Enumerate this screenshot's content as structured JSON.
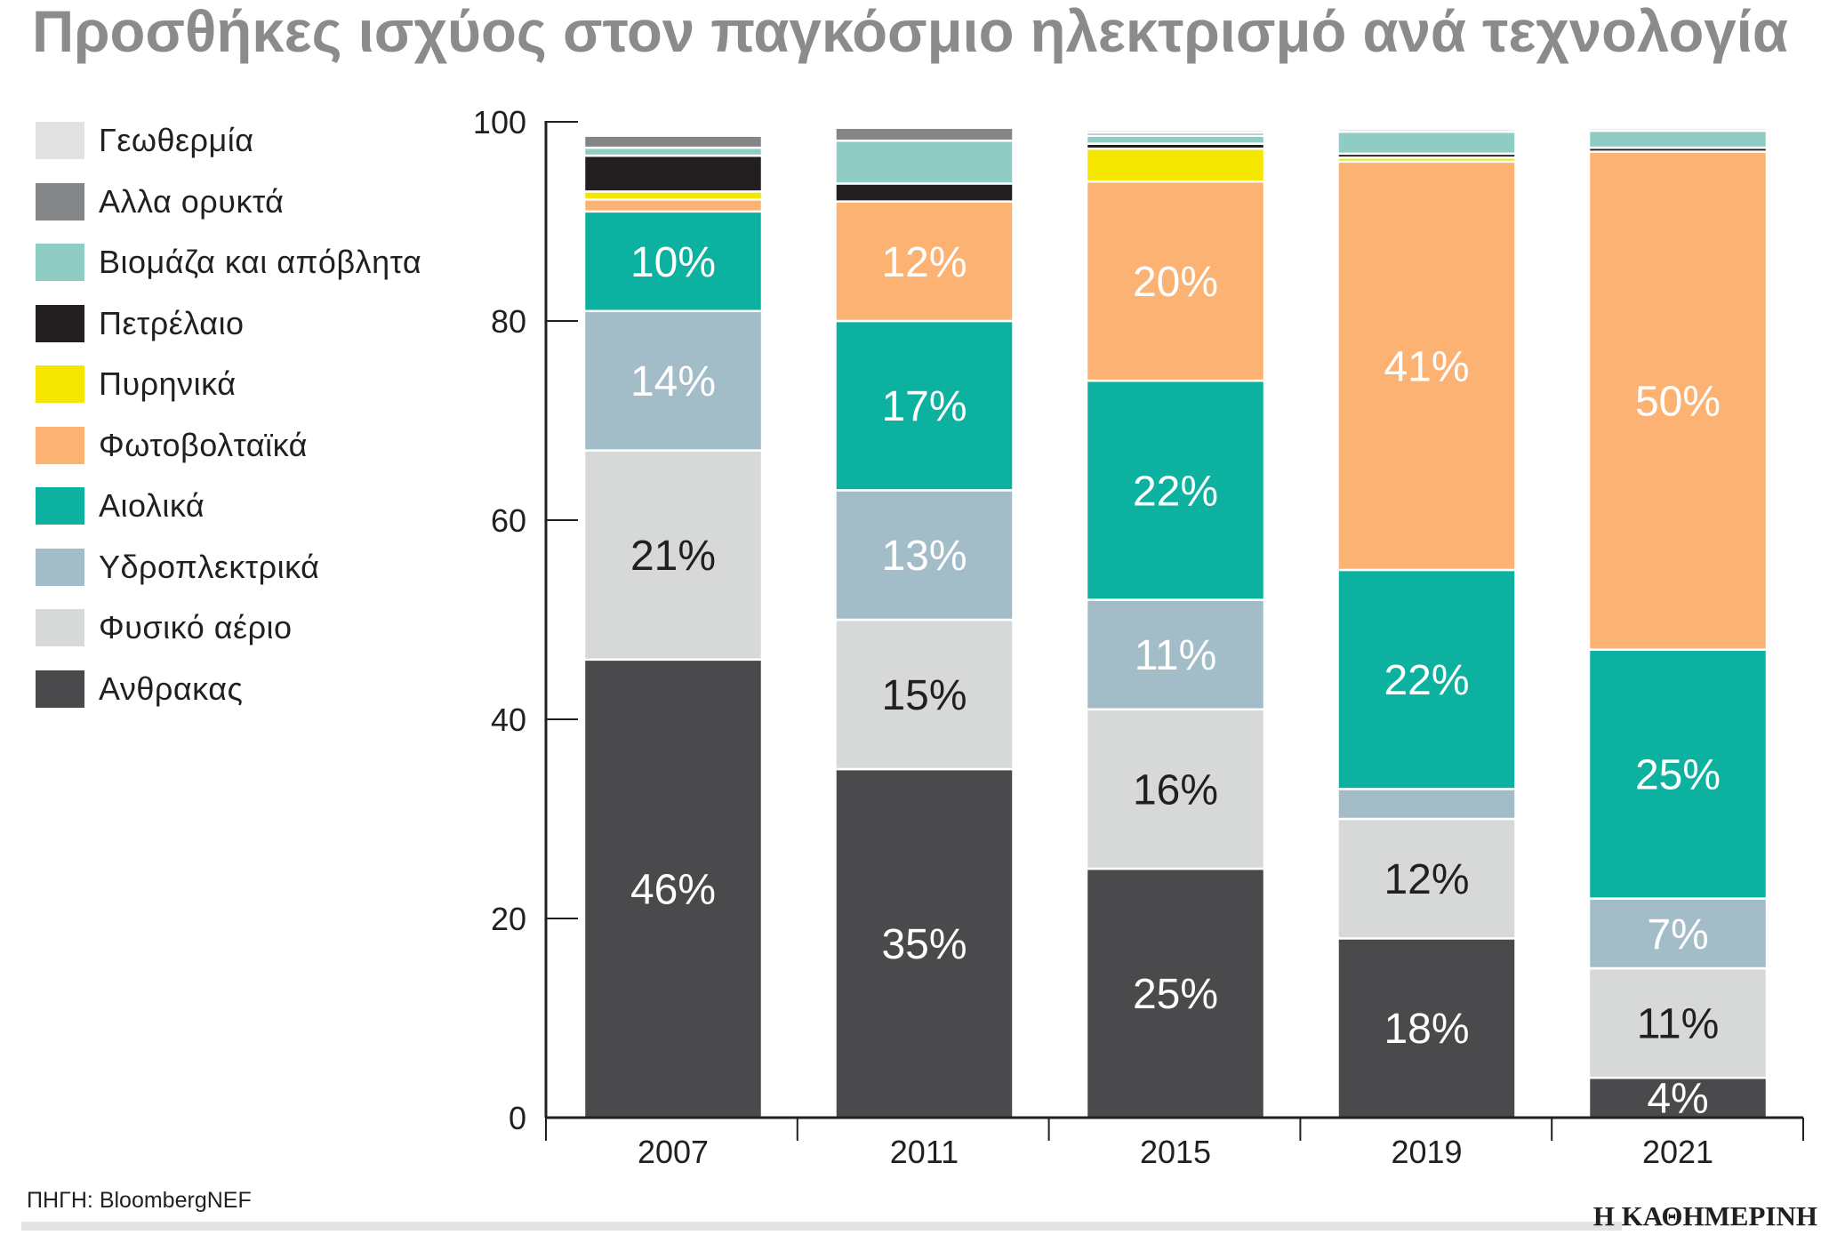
{
  "chart_data": {
    "type": "stacked-bar",
    "title": "Προσθήκες ισχύος στον παγκόσμιο ηλεκτρισμό ανά τεχνολογία",
    "categories": [
      "2007",
      "2011",
      "2015",
      "2019",
      "2021"
    ],
    "ylim": [
      0,
      100
    ],
    "yticks": [
      0,
      20,
      40,
      60,
      80,
      100
    ],
    "grid": false,
    "legend_position": "left",
    "series": [
      {
        "name": "Ανθρακας",
        "color": "#4a4a4c",
        "label_color": "#ffffff",
        "values": [
          46,
          35,
          25,
          18,
          4
        ],
        "labels": [
          "46%",
          "35%",
          "25%",
          "18%",
          "4%"
        ]
      },
      {
        "name": "Φυσικό αέριο",
        "color": "#d7d8d8",
        "label_color": "#231f20",
        "values": [
          21,
          15,
          16,
          12,
          11
        ],
        "labels": [
          "21%",
          "15%",
          "16%",
          "12%",
          "11%"
        ]
      },
      {
        "name": "Υδροπλεκτρικά",
        "color": "#a2bcc8",
        "label_color": "#ffffff",
        "values": [
          14,
          13,
          11,
          3,
          7
        ],
        "labels": [
          "14%",
          "13%",
          "11%",
          "",
          "7%"
        ]
      },
      {
        "name": "Αιολικά",
        "color": "#0db1a0",
        "label_color": "#ffffff",
        "values": [
          10,
          17,
          22,
          22,
          25
        ],
        "labels": [
          "10%",
          "17%",
          "22%",
          "22%",
          "25%"
        ]
      },
      {
        "name": "Φωτοβολταϊκά",
        "color": "#fbb273",
        "label_color": "#ffffff",
        "values": [
          1.2,
          12,
          20,
          41,
          50
        ],
        "labels": [
          "",
          "12%",
          "20%",
          "41%",
          "50%"
        ]
      },
      {
        "name": "Πυρηνικά",
        "color": "#f5e600",
        "label_color": "#231f20",
        "values": [
          0.8,
          0,
          3.3,
          0.4,
          0
        ],
        "labels": [
          "",
          "",
          "",
          "",
          ""
        ]
      },
      {
        "name": "Πετρέλαιο",
        "color": "#231f20",
        "label_color": "#ffffff",
        "values": [
          3.6,
          1.8,
          0.5,
          0.4,
          0.4
        ],
        "labels": [
          "",
          "",
          "",
          "",
          ""
        ]
      },
      {
        "name": "Βιομάζα και απόβλητα",
        "color": "#8fcdc4",
        "label_color": "#231f20",
        "values": [
          0.8,
          4.3,
          0.8,
          2.2,
          1.7
        ],
        "labels": [
          "",
          "",
          "",
          "",
          ""
        ]
      },
      {
        "name": "Αλλα ορυκτά",
        "color": "#848587",
        "label_color": "#ffffff",
        "values": [
          1.2,
          1.3,
          0.3,
          0,
          0
        ],
        "labels": [
          "",
          "",
          "",
          "",
          ""
        ]
      },
      {
        "name": "Γεωθερμία",
        "color": "#e2e2e2",
        "label_color": "#231f20",
        "values": [
          0,
          0,
          0.3,
          0.3,
          0.3
        ],
        "labels": [
          "",
          "",
          "",
          "",
          ""
        ]
      }
    ]
  },
  "legend_order": [
    "Γεωθερμία",
    "Αλλα ορυκτά",
    "Βιομάζα και απόβλητα",
    "Πετρέλαιο",
    "Πυρηνικά",
    "Φωτοβολταϊκά",
    "Αιολικά",
    "Υδροπλεκτρικά",
    "Φυσικό αέριο",
    "Ανθρακας"
  ],
  "footer": {
    "source": "ΠΗΓΗ: BloombergNEF",
    "publisher": "Η ΚΑΘΗΜΕΡΙΝΗ"
  }
}
